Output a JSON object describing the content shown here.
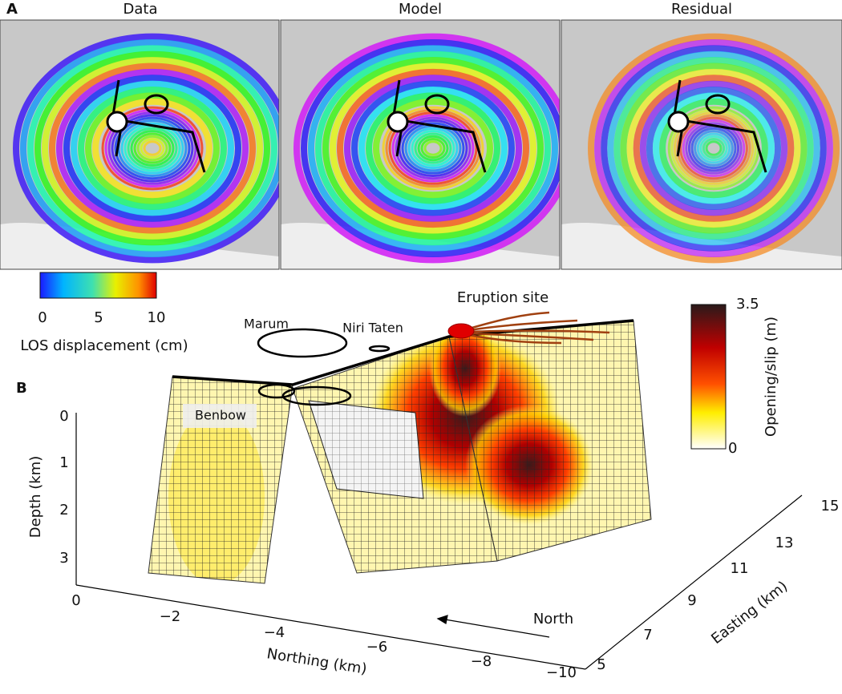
{
  "panel_a": {
    "label": "A",
    "titles": [
      "Data",
      "Model",
      "Residual"
    ],
    "colorbar": {
      "ticks": [
        "0",
        "5",
        "10"
      ],
      "label": "LOS displacement (cm)"
    }
  },
  "panel_b": {
    "label": "B",
    "annotations": {
      "eruption_site": "Eruption site",
      "marum": "Marum",
      "niri_taten": "Niri Taten",
      "benbow": "Benbow",
      "north": "North"
    },
    "depth_axis": {
      "label": "Depth (km)",
      "ticks": [
        "0",
        "1",
        "2",
        "3"
      ]
    },
    "northing_axis": {
      "label": "Northing (km)",
      "ticks": [
        "0",
        "−2",
        "−4",
        "−6",
        "−8",
        "−10"
      ]
    },
    "easting_axis": {
      "label": "Easting (km)",
      "ticks": [
        "5",
        "7",
        "9",
        "11",
        "13",
        "15"
      ]
    },
    "colorbar": {
      "ticks": [
        "3.5",
        "0"
      ],
      "label": "Opening/slip (m)"
    }
  }
}
